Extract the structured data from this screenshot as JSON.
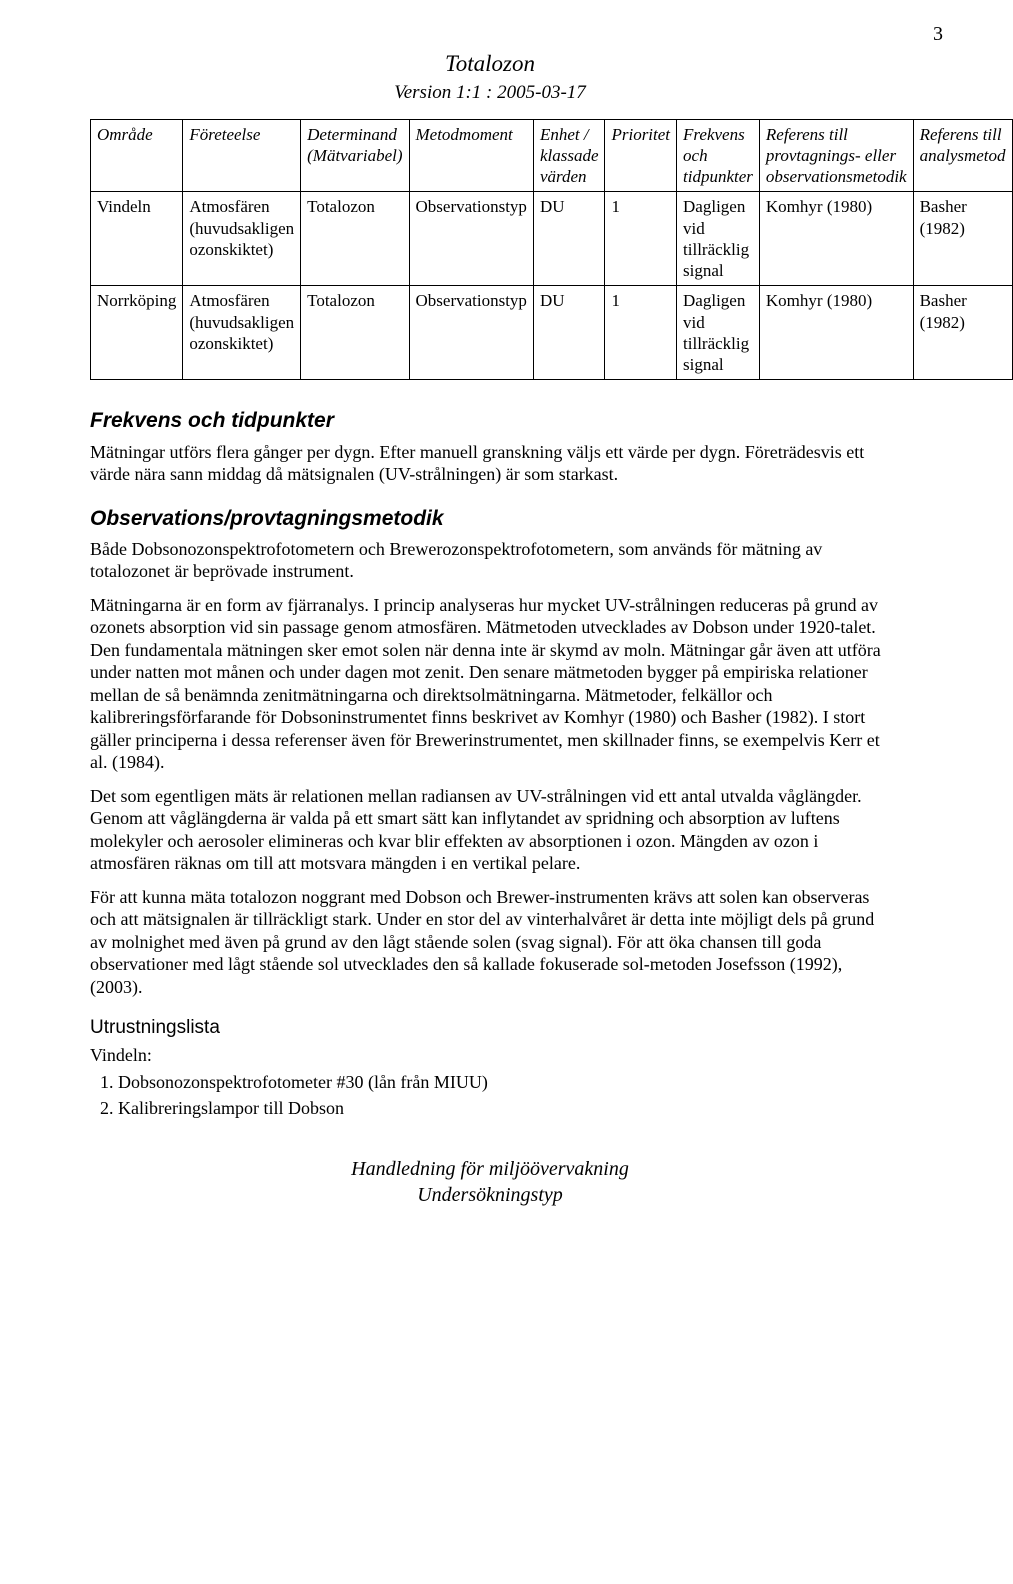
{
  "page_number": "3",
  "header": {
    "title": "Totalozon",
    "subtitle": "Version 1:1 : 2005-03-17"
  },
  "table": {
    "columns": [
      "Område",
      "Företeelse",
      "Determinand (Mätvariabel)",
      "Metodmoment",
      "Enhet / klassade värden",
      "Prioritet",
      "Frekvens och tidpunkter",
      "Referens till provtagnings- eller observationsmetodik",
      "Referens till analysmetod"
    ],
    "rows": [
      [
        "Vindeln",
        "Atmosfären (huvudsakligen ozonskiktet)",
        "Totalozon",
        "Observationstyp",
        "DU",
        "1",
        "Dagligen vid tillräcklig signal",
        "Komhyr (1980)",
        "Basher (1982)"
      ],
      [
        "Norrköping",
        "Atmosfären (huvudsakligen ozonskiktet)",
        "Totalozon",
        "Observationstyp",
        "DU",
        "1",
        "Dagligen vid tillräcklig signal",
        "Komhyr (1980)",
        "Basher (1982)"
      ]
    ]
  },
  "sections": {
    "s1": {
      "heading": "Frekvens och tidpunkter",
      "p1": "Mätningar utförs flera gånger per dygn. Efter manuell granskning väljs ett värde per dygn. Företrädesvis ett värde nära sann middag då mätsignalen (UV-strålningen) är som starkast."
    },
    "s2": {
      "heading": "Observations/provtagningsmetodik",
      "p1": "Både Dobsonozonspektrofotometern och Brewerozonspektrofotometern, som används för mätning av totalozonet är beprövade instrument.",
      "p2": "Mätningarna är en form av fjärranalys. I princip analyseras hur mycket UV-strålningen reduceras på grund av ozonets absorption vid sin passage genom atmosfären. Mätmetoden utvecklades av Dobson under 1920-talet. Den fundamentala mätningen sker emot solen när denna inte är skymd av moln. Mätningar går även att utföra under natten mot månen och under dagen mot zenit. Den senare mätmetoden bygger på empiriska relationer mellan de så benämnda zenitmätningarna och direktsolmätningarna. Mätmetoder, felkällor och kalibreringsförfarande för Dobsoninstrumentet finns beskrivet av Komhyr (1980) och Basher (1982). I stort gäller principerna i dessa referenser även för Brewerinstrumentet, men skillnader finns, se exempelvis Kerr et al. (1984).",
      "p3": "Det som egentligen mäts är relationen mellan radiansen av UV-strålningen vid ett antal utvalda våglängder. Genom att våglängderna är valda på ett smart sätt kan inflytandet av spridning och absorption av luftens molekyler och aerosoler elimineras och kvar blir effekten av absorptionen i ozon. Mängden av ozon i atmosfären räknas om till att motsvara mängden i en vertikal pelare.",
      "p4": "För att kunna mäta totalozon noggrant med Dobson och Brewer-instrumenten krävs att solen kan observeras och att mätsignalen är tillräckligt stark. Under en stor del av vinterhalvåret är detta inte möjligt dels på grund av molnighet med även på grund av den lågt stående solen (svag signal). För att öka chansen till goda observationer med lågt stående sol utvecklades den så kallade fokuserade sol-metoden Josefsson (1992), (2003)."
    },
    "s3": {
      "heading": "Utrustningslista",
      "sub": "Vindeln:",
      "item1": "Dobsonozonspektrofotometer #30 (lån från MIUU)",
      "item2": "Kalibreringslampor till Dobson"
    }
  },
  "footer": {
    "line1": "Handledning för miljöövervakning",
    "line2": "Undersökningstyp"
  }
}
